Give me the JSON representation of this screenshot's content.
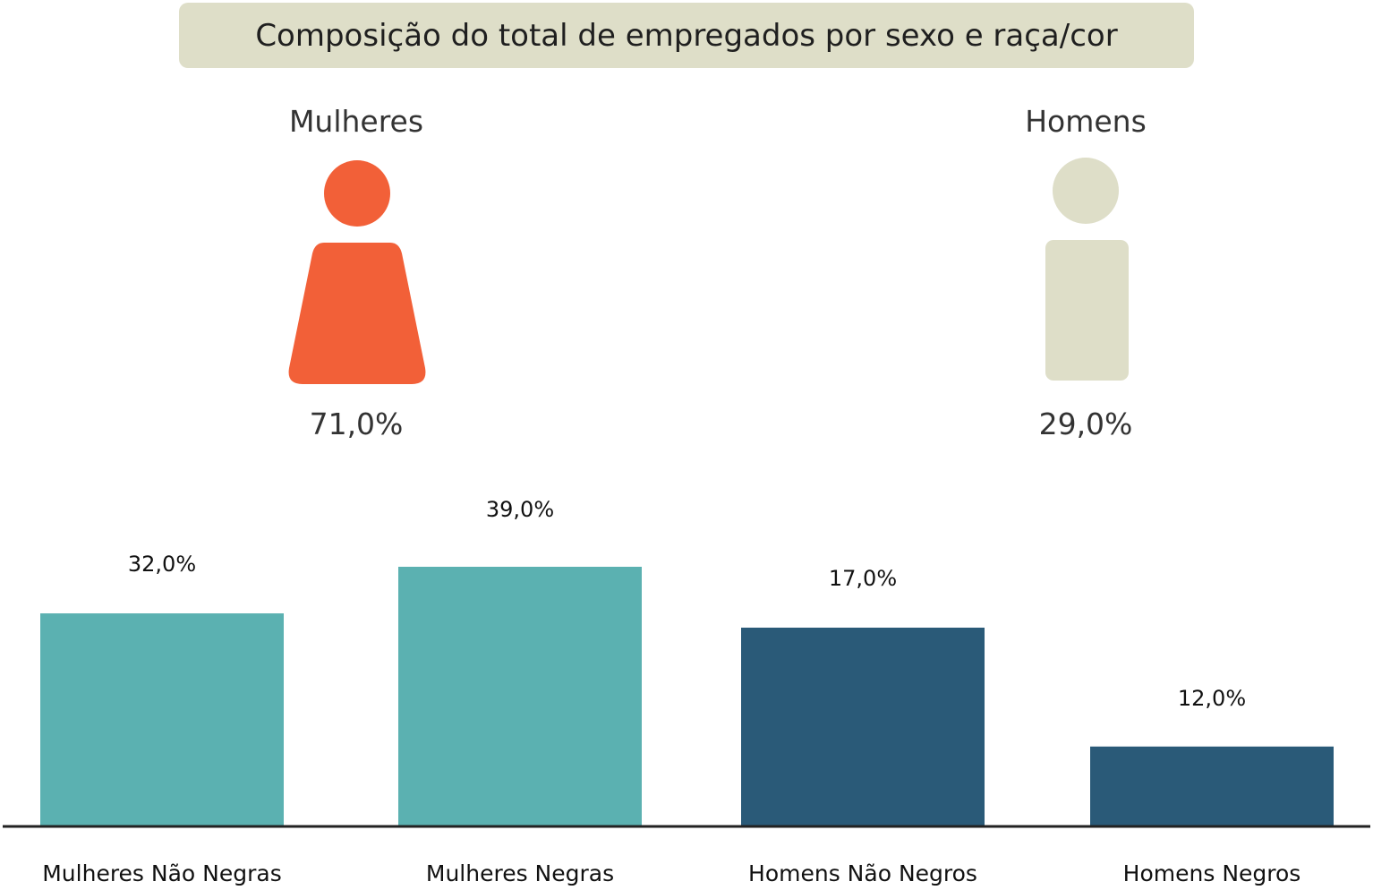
{
  "title": "Composição do total de empregados por sexo e raça/cor",
  "groups": [
    {
      "label": "Mulheres",
      "value_label": "71,0%",
      "value": 71.0,
      "color": "#f26038",
      "icon": "woman-icon"
    },
    {
      "label": "Homens",
      "value_label": "29,0%",
      "value": 29.0,
      "color": "#dedec8",
      "icon": "man-icon"
    }
  ],
  "chart_data": {
    "type": "bar",
    "title": "Composição do total de empregados por sexo e raça/cor",
    "categories": [
      "Mulheres Não Negras",
      "Mulheres Negras",
      "Homens Não Negros",
      "Homens Negros"
    ],
    "values": [
      32.0,
      39.0,
      17.0,
      12.0
    ],
    "data_labels": [
      "32,0%",
      "39,0%",
      "17,0%",
      "12,0%"
    ],
    "colors": [
      "#5bb1b1",
      "#5bb1b1",
      "#2a5a78",
      "#2a5a78"
    ],
    "xlabel": "",
    "ylabel": "",
    "grid": false,
    "legend": "none"
  }
}
